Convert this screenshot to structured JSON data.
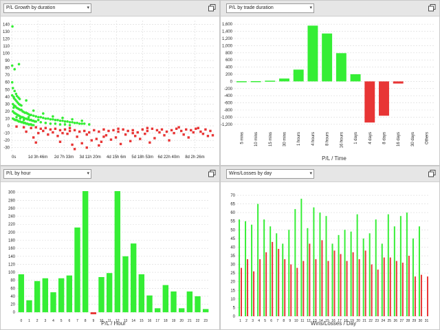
{
  "colors": {
    "green": "#35ee35",
    "red": "#e83535",
    "grid": "#d8d8d8"
  },
  "panels": {
    "growth": {
      "dropdown": "P/L Growth by duration",
      "icon": "maximize-icon"
    },
    "duration": {
      "dropdown": "P/L by trade duration",
      "icon": "maximize-icon"
    },
    "hour": {
      "dropdown": "P/L by hour",
      "icon": "maximize-icon"
    },
    "wins": {
      "dropdown": "Wins/Losses by day",
      "icon": "maximize-icon"
    }
  },
  "chart_data": [
    {
      "id": "growth",
      "type": "scatter",
      "title": "",
      "xlabel": "",
      "ylabel": "",
      "yticks": [
        140,
        130,
        120,
        110,
        100,
        90,
        80,
        70,
        60,
        50,
        40,
        30,
        20,
        10,
        0,
        -10,
        -20,
        -30
      ],
      "ylim": [
        -35,
        145
      ],
      "xticks": [
        "0s",
        "1d 3h 46m",
        "2d 7h 33m",
        "3d 11h 20m",
        "4d 15h 6m",
        "5d 18h 53m",
        "6d 22h 40m",
        "8d 2h 26m"
      ],
      "xlim": [
        0,
        8.4
      ],
      "grid": true,
      "series": [
        {
          "color": "green",
          "points": [
            [
              0.03,
              137
            ],
            [
              0.02,
              83
            ],
            [
              0.12,
              78
            ],
            [
              0.3,
              85
            ],
            [
              0.02,
              60
            ],
            [
              0.05,
              52
            ],
            [
              0.02,
              42
            ],
            [
              0.08,
              40
            ],
            [
              0.1,
              38
            ],
            [
              0.15,
              36
            ],
            [
              0.2,
              34
            ],
            [
              0.25,
              32
            ],
            [
              0.3,
              30
            ],
            [
              0.35,
              29
            ],
            [
              0.4,
              28
            ],
            [
              0.05,
              30
            ],
            [
              0.1,
              28
            ],
            [
              0.15,
              27
            ],
            [
              0.2,
              25
            ],
            [
              0.25,
              24
            ],
            [
              0.3,
              23
            ],
            [
              0.35,
              22
            ],
            [
              0.4,
              22
            ],
            [
              0.45,
              20
            ],
            [
              0.5,
              19
            ],
            [
              0.55,
              18
            ],
            [
              0.6,
              18
            ],
            [
              0.65,
              17
            ],
            [
              0.7,
              16
            ],
            [
              0.75,
              15
            ],
            [
              0.8,
              15
            ],
            [
              0.9,
              14
            ],
            [
              1.0,
              13
            ],
            [
              1.1,
              12
            ],
            [
              1.2,
              12
            ],
            [
              1.3,
              11
            ],
            [
              1.4,
              10
            ],
            [
              1.5,
              10
            ],
            [
              1.6,
              9
            ],
            [
              1.7,
              9
            ],
            [
              1.8,
              8
            ],
            [
              1.9,
              8
            ],
            [
              2.0,
              7
            ],
            [
              2.1,
              7
            ],
            [
              2.2,
              6
            ],
            [
              2.3,
              6
            ],
            [
              2.4,
              5
            ],
            [
              2.5,
              5
            ],
            [
              2.6,
              4
            ],
            [
              2.7,
              4
            ],
            [
              2.8,
              3
            ],
            [
              2.9,
              3
            ],
            [
              3.0,
              3
            ],
            [
              0.05,
              20
            ],
            [
              0.1,
              18
            ],
            [
              0.15,
              17
            ],
            [
              0.2,
              16
            ],
            [
              0.25,
              15
            ],
            [
              0.3,
              14
            ],
            [
              0.35,
              13
            ],
            [
              0.4,
              12
            ],
            [
              0.45,
              12
            ],
            [
              0.5,
              11
            ],
            [
              0.55,
              10
            ],
            [
              0.6,
              10
            ],
            [
              0.65,
              9
            ],
            [
              0.7,
              9
            ],
            [
              0.75,
              8
            ],
            [
              0.8,
              8
            ],
            [
              0.85,
              7
            ],
            [
              0.9,
              7
            ],
            [
              0.95,
              6
            ],
            [
              1.0,
              6
            ],
            [
              0.05,
              10
            ],
            [
              0.1,
              9
            ],
            [
              0.15,
              8
            ],
            [
              0.2,
              8
            ],
            [
              0.25,
              7
            ],
            [
              0.3,
              6
            ],
            [
              0.35,
              6
            ],
            [
              0.4,
              5
            ],
            [
              0.45,
              5
            ],
            [
              0.5,
              4
            ],
            [
              0.55,
              4
            ],
            [
              0.6,
              3
            ],
            [
              0.65,
              3
            ],
            [
              0.7,
              2
            ],
            [
              0.75,
              2
            ],
            [
              0.8,
              2
            ],
            [
              0.85,
              1
            ],
            [
              0.9,
              1
            ],
            [
              1.2,
              5
            ],
            [
              1.4,
              4
            ],
            [
              1.6,
              3
            ],
            [
              1.8,
              3
            ],
            [
              2.0,
              2
            ],
            [
              2.2,
              2
            ],
            [
              2.4,
              1
            ],
            [
              0.12,
              48
            ],
            [
              0.18,
              44
            ],
            [
              0.22,
              41
            ],
            [
              0.28,
              39
            ],
            [
              0.33,
              37
            ],
            [
              0.6,
              35
            ],
            [
              0.9,
              21
            ],
            [
              1.3,
              17
            ],
            [
              1.7,
              13
            ],
            [
              2.1,
              11
            ],
            [
              2.5,
              9
            ],
            [
              2.9,
              7
            ],
            [
              3.2,
              2
            ],
            [
              0.08,
              25
            ],
            [
              0.2,
              12
            ],
            [
              0.35,
              10
            ],
            [
              0.5,
              8
            ],
            [
              0.7,
              12
            ],
            [
              1.1,
              8
            ]
          ]
        },
        {
          "color": "red",
          "points": [
            [
              0.2,
              -1
            ],
            [
              0.5,
              -2
            ],
            [
              0.8,
              -3
            ],
            [
              1.0,
              -2
            ],
            [
              1.2,
              -4
            ],
            [
              1.4,
              -3
            ],
            [
              1.6,
              -5
            ],
            [
              1.8,
              -4
            ],
            [
              2.0,
              -6
            ],
            [
              2.2,
              -5
            ],
            [
              2.4,
              -7
            ],
            [
              2.6,
              -6
            ],
            [
              2.8,
              -8
            ],
            [
              3.0,
              -7
            ],
            [
              3.2,
              -9
            ],
            [
              3.4,
              -6
            ],
            [
              3.6,
              -8
            ],
            [
              3.8,
              -5
            ],
            [
              4.0,
              -7
            ],
            [
              4.2,
              -6
            ],
            [
              4.4,
              -8
            ],
            [
              4.6,
              -5
            ],
            [
              4.8,
              -7
            ],
            [
              5.0,
              -6
            ],
            [
              5.2,
              -9
            ],
            [
              5.4,
              -5
            ],
            [
              5.6,
              -7
            ],
            [
              5.8,
              -4
            ],
            [
              6.0,
              -6
            ],
            [
              6.2,
              -5
            ],
            [
              6.4,
              -8
            ],
            [
              6.6,
              -6
            ],
            [
              6.8,
              -4
            ],
            [
              7.0,
              -7
            ],
            [
              7.2,
              -5
            ],
            [
              7.4,
              -6
            ],
            [
              7.6,
              -4
            ],
            [
              7.8,
              -8
            ],
            [
              8.0,
              -5
            ],
            [
              8.2,
              -7
            ],
            [
              1.1,
              -10
            ],
            [
              1.5,
              -12
            ],
            [
              1.9,
              -14
            ],
            [
              2.3,
              -11
            ],
            [
              2.7,
              -15
            ],
            [
              3.1,
              -12
            ],
            [
              3.5,
              -18
            ],
            [
              3.9,
              -13
            ],
            [
              4.3,
              -16
            ],
            [
              4.7,
              -12
            ],
            [
              5.1,
              -14
            ],
            [
              5.5,
              -11
            ],
            [
              5.9,
              -17
            ],
            [
              6.3,
              -13
            ],
            [
              6.7,
              -10
            ],
            [
              7.1,
              -12
            ],
            [
              7.5,
              -9
            ],
            [
              7.9,
              -11
            ],
            [
              8.3,
              -13
            ],
            [
              2.0,
              -22
            ],
            [
              2.5,
              -26
            ],
            [
              2.9,
              -24
            ],
            [
              3.3,
              -20
            ],
            [
              3.7,
              -22
            ],
            [
              4.1,
              -19
            ],
            [
              4.9,
              -21
            ],
            [
              5.3,
              -18
            ],
            [
              5.7,
              -23
            ],
            [
              6.5,
              -20
            ],
            [
              7.3,
              -16
            ],
            [
              8.1,
              -14
            ],
            [
              2.6,
              -32
            ],
            [
              3.1,
              -30
            ],
            [
              3.6,
              -27
            ],
            [
              4.5,
              -25
            ],
            [
              1.0,
              -23
            ],
            [
              0.9,
              -16
            ],
            [
              0.6,
              -8
            ],
            [
              1.3,
              -7
            ],
            [
              1.7,
              -9
            ],
            [
              2.1,
              -10
            ],
            [
              2.4,
              -3
            ],
            [
              3.8,
              -15
            ],
            [
              4.4,
              -4
            ],
            [
              5.0,
              -10
            ],
            [
              5.6,
              -3
            ],
            [
              6.1,
              -9
            ],
            [
              6.9,
              -2
            ],
            [
              7.7,
              -3
            ]
          ]
        }
      ]
    },
    {
      "id": "duration",
      "type": "bar",
      "title": "",
      "xlabel": "P/L / Time",
      "ylabel": "",
      "categories": [
        "5 mins",
        "10 mins",
        "15 mins",
        "30 mins",
        "1 hours",
        "4 hours",
        "8 hours",
        "16 hours",
        "1 days",
        "4 days",
        "8 days",
        "16 days",
        "30 days",
        "Others"
      ],
      "values": [
        5,
        8,
        20,
        80,
        330,
        1560,
        1340,
        790,
        200,
        -1150,
        -960,
        -60,
        0,
        0
      ],
      "yticks": [
        1600,
        1400,
        1200,
        1000,
        800,
        600,
        400,
        200,
        0,
        -200,
        -400,
        -600,
        -800,
        -1000,
        -1200
      ],
      "ylim": [
        -1300,
        1700
      ],
      "grid": true
    },
    {
      "id": "hour",
      "type": "bar",
      "title": "",
      "xlabel": "P/L / Hour",
      "ylabel": "",
      "categories": [
        "0",
        "1",
        "2",
        "3",
        "4",
        "5",
        "6",
        "7",
        "8",
        "9",
        "10",
        "11",
        "12",
        "13",
        "14",
        "15",
        "16",
        "17",
        "18",
        "19",
        "20",
        "21",
        "22",
        "23"
      ],
      "values": [
        95,
        30,
        78,
        85,
        50,
        85,
        92,
        212,
        303,
        -5,
        88,
        98,
        303,
        140,
        172,
        95,
        42,
        10,
        68,
        52,
        10,
        52,
        40,
        8
      ],
      "yticks": [
        300,
        280,
        260,
        240,
        220,
        200,
        180,
        160,
        140,
        120,
        100,
        80,
        60,
        40,
        20,
        0
      ],
      "ylim": [
        -10,
        315
      ],
      "grid": true
    },
    {
      "id": "wins",
      "type": "bar",
      "title": "",
      "xlabel": "Wins/Losses / Day",
      "ylabel": "",
      "categories": [
        "1",
        "2",
        "3",
        "4",
        "5",
        "6",
        "7",
        "8",
        "9",
        "10",
        "11",
        "12",
        "13",
        "14",
        "15",
        "16",
        "17",
        "18",
        "19",
        "20",
        "21",
        "22",
        "23",
        "24",
        "25",
        "26",
        "27",
        "28",
        "29",
        "30",
        "31"
      ],
      "yticks": [
        70,
        65,
        60,
        55,
        50,
        45,
        40,
        35,
        30,
        25,
        20,
        15,
        10,
        5,
        0
      ],
      "ylim": [
        0,
        72
      ],
      "grid": true,
      "series": [
        {
          "name": "",
          "color": "green",
          "values": [
            56,
            55,
            53,
            65,
            56,
            52,
            48,
            42,
            50,
            62,
            68,
            51,
            63,
            60,
            58,
            42,
            47,
            50,
            49,
            59,
            45,
            48,
            56,
            42,
            59,
            52,
            58,
            60,
            45,
            52,
            0
          ]
        },
        {
          "name": "",
          "color": "red",
          "values": [
            28,
            33,
            26,
            33,
            37,
            43,
            39,
            33,
            30,
            28,
            32,
            42,
            33,
            44,
            32,
            38,
            36,
            32,
            37,
            33,
            38,
            30,
            27,
            34,
            34,
            32,
            31,
            35,
            23,
            24,
            23
          ]
        }
      ]
    }
  ]
}
